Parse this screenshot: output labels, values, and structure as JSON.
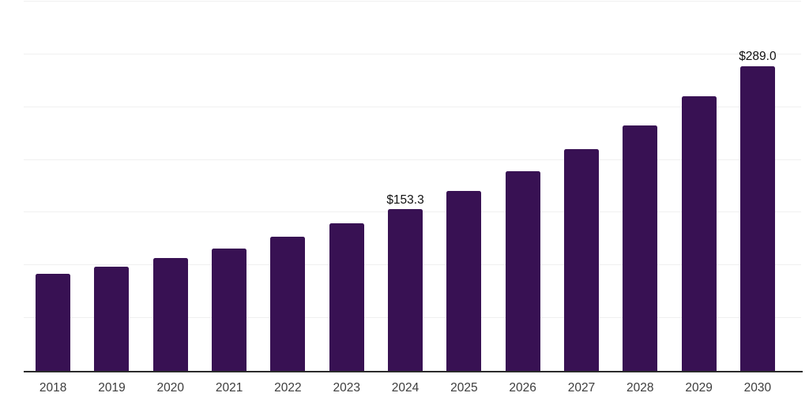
{
  "chart_data": {
    "type": "bar",
    "title": "",
    "xlabel": "",
    "ylabel": "",
    "categories": [
      "2018",
      "2019",
      "2020",
      "2021",
      "2022",
      "2023",
      "2024",
      "2025",
      "2026",
      "2027",
      "2028",
      "2029",
      "2030"
    ],
    "values": [
      91.8,
      98.6,
      106.7,
      116.1,
      127.5,
      140.0,
      153.3,
      170.4,
      189.0,
      210.0,
      232.5,
      260.0,
      289.0
    ],
    "bar_value_labels": [
      "",
      "",
      "",
      "",
      "",
      "",
      "$153.3",
      "",
      "",
      "",
      "",
      "",
      "$289.0"
    ],
    "ylim": [
      0,
      350
    ],
    "gridline_step": 50,
    "grid_on": true,
    "legend": "none",
    "colors": {
      "bar": "#381153",
      "gridline": "#f0f0f0",
      "axis": "#2b2b2b",
      "tick_label": "#3d3d3d",
      "value_label": "#111111",
      "background": "#ffffff"
    }
  }
}
